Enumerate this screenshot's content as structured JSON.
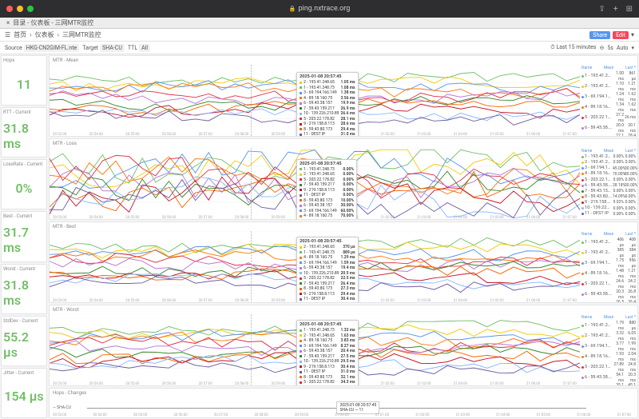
{
  "browser": {
    "url": "ping.nxtrace.org",
    "tab_title": "目录 - 仪表板 - 三网MTR监控"
  },
  "breadcrumb": {
    "home": "首页",
    "section": "仪表板",
    "page": "三网MTR监控",
    "share": "Share",
    "edit": "Edit"
  },
  "filters": {
    "source_label": "Source",
    "source_value": "HKG-CN2GIM-FL.nte",
    "target_label": "Target",
    "target_value": "SHA-CU",
    "ttl_label": "TTL",
    "ttl_value": "All",
    "time_range": "Last 15 minutes",
    "refresh": "5s",
    "auto": "Auto"
  },
  "cards": [
    {
      "title": "Hops",
      "value": "11",
      "color": "#73bf69"
    },
    {
      "title": "RTT - Current",
      "value": "31.8 ms",
      "color": "#73bf69"
    },
    {
      "title": "LossRate - Current",
      "value": "0%",
      "color": "#73bf69"
    },
    {
      "title": "Best - Current",
      "value": "31.7 ms",
      "color": "#73bf69"
    },
    {
      "title": "Worst - Current",
      "value": "31.8 ms",
      "color": "#73bf69"
    },
    {
      "title": "StdDev - Current",
      "value": "55.2 μs",
      "color": "#73bf69"
    },
    {
      "title": "Jitter - Current",
      "value": "154 μs",
      "color": "#73bf69"
    }
  ],
  "series_colors": [
    "#73bf69",
    "#f2cc0c",
    "#5794f2",
    "#ff780a",
    "#e02f44",
    "#b877d9",
    "#37872d",
    "#fa6400",
    "#c4162a",
    "#8ab8ff",
    "#705da0"
  ],
  "series_names": [
    "1 - 193.41.248.73",
    "2 - 193.41.248.65",
    "3 - 69.194.166.149",
    "4 - 89.18.160.75",
    "5 - 203.22.178.82",
    "6 - 59.43.38.157",
    "7 - 59.43.159.217",
    "8 - 59.43.80.173",
    "9 - 219.158.8.113",
    "10 - 139.226.210.89",
    "11 - DEST IP"
  ],
  "xaxis_ticks": [
    "20:53:00",
    "20:54:00",
    "20:55:00",
    "20:56:00",
    "20:57:00",
    "20:58:00",
    "20:59:00",
    "21:00:00",
    "21:01:00",
    "21:02:00",
    "21:03:00",
    "21:04:00",
    "21:05:00",
    "21:06:00",
    "21:07:00"
  ],
  "panels": [
    {
      "title": "MTR - Mean",
      "height": "normal",
      "legend_hdr": [
        "Name",
        "Mean",
        "Last *"
      ],
      "legend_vals": [
        [
          "1.00 ms",
          "861 μs"
        ],
        [
          "1.10 ms",
          "1.21 ms"
        ],
        [
          "1.24 ms",
          "1.62 ms"
        ],
        [
          "1.34 ms",
          "1.62 ms"
        ],
        [
          "27.2 ms",
          "26 ms"
        ],
        [
          "20.0 ms",
          "20.1 ms"
        ],
        [
          "27.1 ms",
          "28.4 ms"
        ],
        [
          "37.0 ms",
          "48.9 ms"
        ],
        [
          "31.2 ms",
          "31.4 ms"
        ],
        [
          "26.5 ms",
          "26 ms"
        ],
        [
          "31.8 ms",
          "31.8 ms"
        ]
      ],
      "tooltip": {
        "time": "2025-01-08 20:57:45",
        "pos_left": "42%",
        "pos_top": "10%",
        "rows": [
          [
            "2 - 193.41.248.65",
            "1.05 ms"
          ],
          [
            "1 - 193.41.248.73",
            "1.08 ms"
          ],
          [
            "3 - 69.194.166.149",
            "1.38 ms"
          ],
          [
            "4 - 89.18.160.75",
            "3.56 ms"
          ],
          [
            "6 - 59.43.38.157",
            "19.9 ms"
          ],
          [
            "7 - 59.43.159.217",
            "26.9 ms"
          ],
          [
            "10 - 139.226.210.89",
            "26.6 ms"
          ],
          [
            "5 - 203.22.178.82",
            "28.1 ms"
          ],
          [
            "9 - 219.158.8.113",
            "28.6 ms"
          ],
          [
            "8 - 59.43.80.173",
            "29.4 ms"
          ],
          [
            "11 - DEST IP",
            "31.0 ms"
          ]
        ]
      }
    },
    {
      "title": "MTR - Loss",
      "height": "normal",
      "legend_hdr": [
        "Name",
        "Mean",
        "Last *"
      ],
      "legend_vals": [
        [
          "0.00%",
          "0.00%"
        ],
        [
          "0.00%",
          "0.00%"
        ],
        [
          "45.00%",
          "30.00%"
        ],
        [
          "70.00%",
          "80.00%"
        ],
        [
          "0.00%",
          "0.00%"
        ],
        [
          "28.18%",
          "30.00%"
        ],
        [
          "0.00%",
          "0.00%"
        ],
        [
          "14.09%",
          "0.00%"
        ],
        [
          "9.02%",
          "0.00%"
        ],
        [
          "0.00%",
          "0.00%"
        ],
        [
          "0.00%",
          "0.00%"
        ]
      ],
      "tooltip": {
        "time": "2025-01-08 20:57:45",
        "pos_left": "42%",
        "pos_top": "15%",
        "rows": [
          [
            "1 - 193.41.248.73",
            "0.00%"
          ],
          [
            "2 - 193.41.248.65",
            "0.00%"
          ],
          [
            "5 - 203.22.178.82",
            "0.00%"
          ],
          [
            "7 - 59.43.159.217",
            "0.00%"
          ],
          [
            "9 - 219.158.8.113",
            "0.00%"
          ],
          [
            "11 - DEST IP",
            "0.00%"
          ],
          [
            "8 - 59.43.80.173",
            "10.00%"
          ],
          [
            "6 - 59.43.38.157",
            "30.00%"
          ],
          [
            "3 - 69.194.166.149",
            "60.00%"
          ],
          [
            "4 - 89.18.160.75",
            "70.00%"
          ],
          [
            "10 - 139.226.210.89",
            "80.00%"
          ]
        ],
        "extra": "10 - 139.226.210.70  80.00%"
      }
    },
    {
      "title": "MTR - Best",
      "height": "normal",
      "legend_hdr": [
        "Name",
        "Mean",
        "Last *"
      ],
      "legend_vals": [
        [
          "406 μs",
          "408 μs"
        ],
        [
          "385 μs",
          "384 μs"
        ],
        [
          "1.75 ms",
          "956 μs"
        ],
        [
          "1.48 ms",
          "1.21 ms"
        ],
        [
          "24.6 ms",
          "24.2 ms"
        ],
        [
          "20.3 ms",
          "26.8 ms"
        ],
        [
          "26.5 ms",
          "26.4 ms"
        ],
        [
          "24.4 ms",
          "27.3 ms"
        ],
        [
          "30.4 ms",
          "30.6 ms"
        ],
        [
          "25 ms",
          "26 ms"
        ],
        [
          "31.7 ms",
          "31.7 ms"
        ]
      ],
      "tooltip": {
        "time": "2025-01-08 20:57:45",
        "pos_left": "42%",
        "pos_top": "8%",
        "rows": [
          [
            "2 - 193.41.248.65",
            "370 μs"
          ],
          [
            "1 - 193.41.248.73",
            "889 μs"
          ],
          [
            "4 - 89.18.160.75",
            "1.29 ms"
          ],
          [
            "3 - 69.194.166.149",
            "1.59 ms"
          ],
          [
            "6 - 59.43.38.157",
            "19.4 ms"
          ],
          [
            "10 - 139.226.210.89",
            "20.5 ms"
          ],
          [
            "5 - 203.22.178.82",
            "22.5 ms"
          ],
          [
            "7 - 59.43.159.217",
            "26.4 ms"
          ],
          [
            "8 - 59.43.80.173",
            "27.3 ms"
          ],
          [
            "9 - 219.158.8.113",
            "29.4 ms"
          ],
          [
            "11 - DEST IP",
            "30.4 ms"
          ]
        ]
      }
    },
    {
      "title": "MTR - Worst",
      "height": "normal",
      "legend_hdr": [
        "Name",
        "Mean",
        "Last *"
      ],
      "legend_vals": [
        [
          "1.79 ms",
          "880 μs"
        ],
        [
          "3.32 ms",
          "6.05 ms"
        ],
        [
          "3.77 ms",
          "1.99 ms"
        ],
        [
          "1.93 ms",
          "2.04 ms"
        ],
        [
          "27.89 ms",
          "24.8 ms"
        ],
        [
          "54.1 ms",
          "20.3 ms"
        ],
        [
          "35.1 ms",
          "45.1 ms"
        ],
        [
          "54.6 ms",
          "53.1 ms"
        ],
        [
          "33.2 ms",
          "33.3 ms"
        ],
        [
          "29.6 ms",
          "26 ms"
        ],
        [
          "32 ms",
          "31.8 ms"
        ]
      ],
      "tooltip": {
        "time": "2025-01-08 20:57:45",
        "pos_left": "42%",
        "pos_top": "8%",
        "rows": [
          [
            "1 - 193.41.248.73",
            "1.32 ms"
          ],
          [
            "2 - 193.41.248.65",
            "1.63 ms"
          ],
          [
            "4 - 89.18.160.75",
            "3.83 ms"
          ],
          [
            "3 - 69.194.166.149",
            "8.27 ms"
          ],
          [
            "6 - 59.43.38.157",
            "20.4 ms"
          ],
          [
            "7 - 59.43.159.217",
            "27.5 ms"
          ],
          [
            "10 - 139.226.210.89",
            "29.5 ms"
          ],
          [
            "9 - 219.158.8.113",
            "30.4 ms"
          ],
          [
            "11 - DEST IP",
            "31.0 ms"
          ],
          [
            "8 - 59.43.80.173",
            "32.1 ms"
          ],
          [
            "5 - 203.22.178.82",
            "34.3 ms"
          ]
        ]
      }
    }
  ],
  "changes": {
    "title": "Hops - Changes",
    "label": "SHA-CU",
    "tooltip_time": "2025-01-08 20:57:45",
    "tooltip_val": "SHA-CU — 11"
  }
}
